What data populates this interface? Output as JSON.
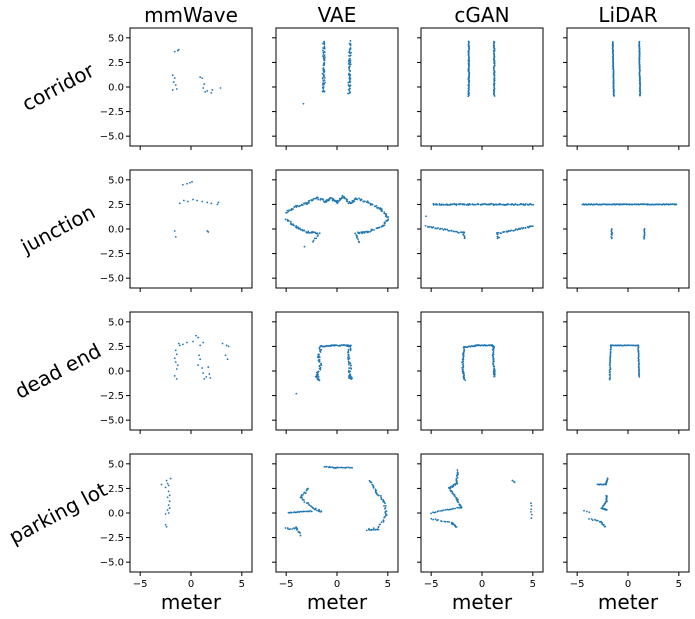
{
  "chart_data": {
    "type": "scatter",
    "columns": [
      "mmWave",
      "VAE",
      "cGAN",
      "LiDAR"
    ],
    "rows": [
      "corridor",
      "junction",
      "dead end",
      "parking lot"
    ],
    "xlabel": "meter",
    "xlim": [
      -6,
      6
    ],
    "ylim": [
      -6,
      6
    ],
    "xticks": [
      "−5",
      "0",
      "5"
    ],
    "yticks": [
      "5.0",
      "2.5",
      "0.0",
      "−2.5",
      "−5.0"
    ],
    "marker_color": "#1f77b4",
    "grid": false,
    "legend": "none",
    "panels": [
      [
        {
          "points": [
            [
              -1.6,
              3.6
            ],
            [
              -1.3,
              3.7
            ],
            [
              -1.2,
              3.8
            ],
            [
              -1.8,
              1.2
            ],
            [
              -1.6,
              0.9
            ],
            [
              -1.7,
              0.5
            ],
            [
              -1.5,
              0.2
            ],
            [
              -1.4,
              -0.2
            ],
            [
              -1.8,
              -0.3
            ],
            [
              0.9,
              1.0
            ],
            [
              1.1,
              0.9
            ],
            [
              1.3,
              0.3
            ],
            [
              1.2,
              -0.1
            ],
            [
              1.4,
              -0.5
            ],
            [
              1.6,
              -0.4
            ],
            [
              2.0,
              -0.6
            ],
            [
              2.1,
              -0.3
            ],
            [
              2.9,
              -0.1
            ]
          ]
        },
        {
          "points": "two-walls-noisy"
        },
        {
          "points": "two-walls-smooth"
        },
        {
          "points": "two-walls-thin"
        }
      ],
      [
        {
          "points": [
            [
              -0.8,
              4.5
            ],
            [
              -0.4,
              4.6
            ],
            [
              -0.1,
              4.7
            ],
            [
              0.1,
              4.8
            ],
            [
              -1.1,
              2.6
            ],
            [
              -0.7,
              2.9
            ],
            [
              -0.3,
              2.8
            ],
            [
              0.2,
              3.0
            ],
            [
              0.6,
              2.9
            ],
            [
              1.1,
              2.8
            ],
            [
              1.6,
              2.7
            ],
            [
              2.0,
              2.6
            ],
            [
              2.7,
              2.7
            ],
            [
              2.6,
              2.5
            ],
            [
              -1.6,
              -0.2
            ],
            [
              -1.5,
              -0.8
            ],
            [
              1.6,
              -0.2
            ],
            [
              1.7,
              -0.3
            ]
          ]
        },
        {
          "points": "junction-vae"
        },
        {
          "points": "junction-cgan"
        },
        {
          "points": "junction-lidar"
        }
      ],
      [
        {
          "points": [
            [
              -1.2,
              2.8
            ],
            [
              -0.8,
              2.7
            ],
            [
              -0.4,
              2.9
            ],
            [
              0.2,
              3.0
            ],
            [
              0.5,
              3.6
            ],
            [
              0.7,
              3.4
            ],
            [
              0.9,
              2.6
            ],
            [
              1.2,
              2.9
            ],
            [
              -1.5,
              2.1
            ],
            [
              -1.4,
              1.7
            ],
            [
              -1.6,
              1.3
            ],
            [
              -1.5,
              0.9
            ],
            [
              -1.3,
              0.6
            ],
            [
              -1.4,
              0.2
            ],
            [
              -1.6,
              -0.5
            ],
            [
              -1.4,
              -0.8
            ],
            [
              0.8,
              1.6
            ],
            [
              0.9,
              1.2
            ],
            [
              0.7,
              0.6
            ],
            [
              1.1,
              0.3
            ],
            [
              1.2,
              -0.2
            ],
            [
              1.5,
              -0.6
            ],
            [
              1.3,
              -0.8
            ],
            [
              3.1,
              2.8
            ],
            [
              3.5,
              2.6
            ],
            [
              3.7,
              2.5
            ],
            [
              3.6,
              1.2
            ],
            [
              3.4,
              1.6
            ],
            [
              1.7,
              0.4
            ],
            [
              1.8,
              -0.3
            ],
            [
              1.9,
              -0.7
            ],
            [
              -1.1,
              2.6
            ]
          ]
        },
        {
          "points": "deadend-vae"
        },
        {
          "points": "deadend-cgan"
        },
        {
          "points": "deadend-lidar"
        }
      ],
      [
        {
          "points": [
            [
              -2.4,
              3.3
            ],
            [
              -2.3,
              3.0
            ],
            [
              -2.2,
              2.8
            ],
            [
              -2.5,
              2.6
            ],
            [
              -2.2,
              2.2
            ],
            [
              -2.1,
              1.8
            ],
            [
              -2.3,
              1.6
            ],
            [
              -2.1,
              1.2
            ],
            [
              -2.2,
              0.8
            ],
            [
              -2.1,
              0.5
            ],
            [
              -2.3,
              0.3
            ],
            [
              -2.2,
              0.0
            ],
            [
              -2.5,
              -0.1
            ],
            [
              -2.5,
              -1.2
            ],
            [
              -2.4,
              -1.4
            ],
            [
              -2.9,
              2.9
            ],
            [
              -2.0,
              3.5
            ]
          ]
        },
        {
          "points": "parking-vae"
        },
        {
          "points": "parking-cgan"
        },
        {
          "points": "parking-lidar"
        }
      ]
    ]
  }
}
